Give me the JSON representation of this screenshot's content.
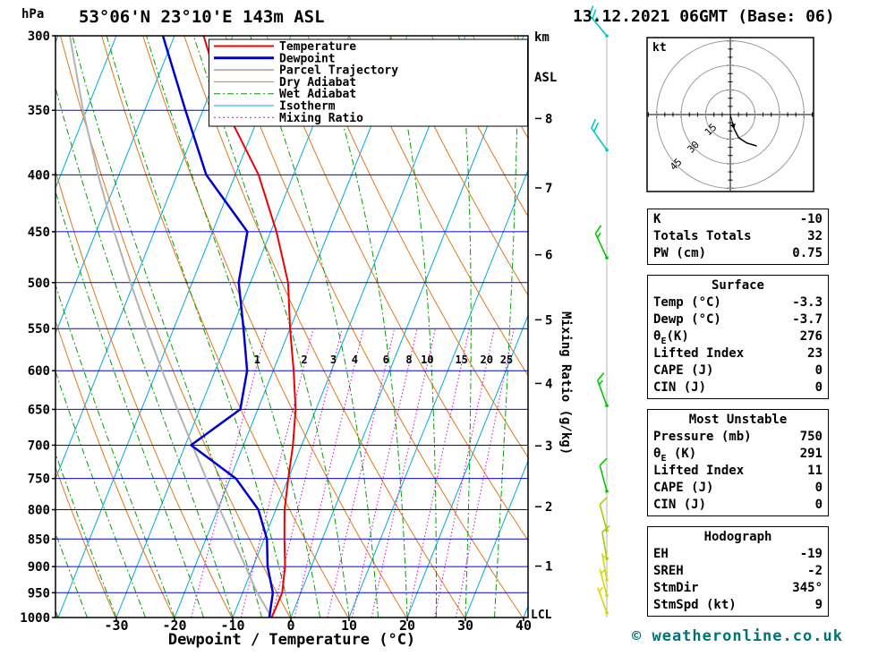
{
  "header": {
    "station_title": "53°06'N 23°10'E 143m ASL",
    "datetime_title": "13.12.2021 06GMT (Base: 06)"
  },
  "axes": {
    "pressure_unit": "hPa",
    "pressure_ticks": [
      300,
      350,
      400,
      450,
      500,
      550,
      600,
      650,
      700,
      750,
      800,
      850,
      900,
      950,
      1000
    ],
    "temp_ticks": [
      -30,
      -20,
      -10,
      0,
      10,
      20,
      30,
      40
    ],
    "xlabel": "Dewpoint / Temperature (°C)",
    "km_unit_line1": "km",
    "km_unit_line2": "ASL",
    "km_ticks": [
      1,
      2,
      3,
      4,
      5,
      6,
      7,
      8
    ],
    "mixing_ratio_label": "Mixing Ratio (g/kg)",
    "lcl_label": "LCL"
  },
  "legend": [
    {
      "label": "Temperature",
      "color": "#ee0000",
      "style": "solid",
      "width": 2
    },
    {
      "label": "Dewpoint",
      "color": "#0000cc",
      "style": "solid",
      "width": 3
    },
    {
      "label": "Parcel Trajectory",
      "color": "#b3b3b3",
      "style": "solid",
      "width": 2
    },
    {
      "label": "Dry Adiabat",
      "color": "#e07818",
      "style": "solid",
      "width": 1
    },
    {
      "label": "Wet Adiabat",
      "color": "#00a000",
      "style": "dashdot",
      "width": 1
    },
    {
      "label": "Isotherm",
      "color": "#00aadd",
      "style": "solid",
      "width": 1
    },
    {
      "label": "Mixing Ratio",
      "color": "#dd00dd",
      "style": "dotted",
      "width": 1
    }
  ],
  "colors": {
    "temperature": "#ee0000",
    "dewpoint": "#0000cc",
    "parcel": "#b3b3b3",
    "dry_adiabat": "#e07818",
    "wet_adiabat": "#00a000",
    "isotherm": "#00aadd",
    "mixing_ratio": "#dd00dd",
    "isobar": "#0000ee",
    "barb_staff": "#b4b4b4"
  },
  "chart_data": {
    "type": "skewt-log-p-sounding",
    "title": "53°06'N 23°10'E 143m ASL  13.12.2021 06GMT (Base: 06)",
    "pressure_axis_hpa": {
      "min": 300,
      "max": 1000,
      "scale": "log"
    },
    "temp_axis_c": {
      "min_at_surface": -40,
      "max_at_surface": 40,
      "skew": "temperature lines slant up-right"
    },
    "isotherm_step_c": 10,
    "dry_adiabat_step_k": 10,
    "wet_adiabat_surface_temps_c": [
      -40,
      -35,
      -30,
      -25,
      -20,
      -15,
      -10,
      -5,
      0,
      5,
      10,
      15,
      20,
      25,
      30,
      35
    ],
    "mixing_ratio_lines_gkg": [
      1,
      2,
      3,
      4,
      6,
      8,
      10,
      15,
      20,
      25
    ],
    "temperature_c": [
      [
        1000,
        -3.3
      ],
      [
        950,
        -3.2
      ],
      [
        900,
        -4.5
      ],
      [
        850,
        -6.5
      ],
      [
        800,
        -8.5
      ],
      [
        750,
        -10.0
      ],
      [
        700,
        -11.5
      ],
      [
        650,
        -13.5
      ],
      [
        600,
        -16.5
      ],
      [
        550,
        -20.0
      ],
      [
        500,
        -23.5
      ],
      [
        450,
        -29.0
      ],
      [
        400,
        -36.0
      ],
      [
        350,
        -46.0
      ],
      [
        300,
        -55.0
      ]
    ],
    "dewpoint_c": [
      [
        1000,
        -3.7
      ],
      [
        950,
        -4.8
      ],
      [
        900,
        -7.5
      ],
      [
        850,
        -9.5
      ],
      [
        800,
        -13.0
      ],
      [
        750,
        -19.0
      ],
      [
        700,
        -29.0
      ],
      [
        650,
        -23.0
      ],
      [
        600,
        -24.5
      ],
      [
        550,
        -28.0
      ],
      [
        500,
        -32.0
      ],
      [
        450,
        -34.0
      ],
      [
        400,
        -45.0
      ],
      [
        350,
        -53.0
      ],
      [
        300,
        -62.0
      ]
    ],
    "parcel_c": [
      [
        1000,
        -3.3
      ],
      [
        950,
        -7.5
      ],
      [
        900,
        -11.3
      ],
      [
        850,
        -15.3
      ],
      [
        800,
        -19.6
      ],
      [
        750,
        -24.1
      ],
      [
        700,
        -28.8
      ],
      [
        650,
        -33.8
      ],
      [
        600,
        -39.1
      ],
      [
        550,
        -44.7
      ],
      [
        500,
        -50.6
      ],
      [
        450,
        -56.9
      ],
      [
        400,
        -63.6
      ],
      [
        350,
        -70.6
      ],
      [
        300,
        -78.0
      ]
    ],
    "lcl_pressure_hpa": 1000,
    "winds": [
      {
        "p_hpa": 300,
        "dir_deg": 320,
        "speed_kt": 25,
        "color": "#00c8c8"
      },
      {
        "p_hpa": 380,
        "dir_deg": 325,
        "speed_kt": 20,
        "color": "#00c8c8"
      },
      {
        "p_hpa": 475,
        "dir_deg": 335,
        "speed_kt": 15,
        "color": "#00c800"
      },
      {
        "p_hpa": 645,
        "dir_deg": 340,
        "speed_kt": 15,
        "color": "#00c800"
      },
      {
        "p_hpa": 770,
        "dir_deg": 345,
        "speed_kt": 10,
        "color": "#00c800"
      },
      {
        "p_hpa": 835,
        "dir_deg": 345,
        "speed_kt": 10,
        "color": "#a0d000"
      },
      {
        "p_hpa": 885,
        "dir_deg": 350,
        "speed_kt": 10,
        "color": "#a0d000"
      },
      {
        "p_hpa": 925,
        "dir_deg": 350,
        "speed_kt": 5,
        "color": "#d8d800"
      },
      {
        "p_hpa": 955,
        "dir_deg": 345,
        "speed_kt": 5,
        "color": "#d8d800"
      },
      {
        "p_hpa": 990,
        "dir_deg": 340,
        "speed_kt": 5,
        "color": "#d8d800"
      }
    ],
    "hodograph": {
      "unit_label": "kt",
      "rings_kt": [
        15,
        30,
        45
      ],
      "trace_uv_kt": [
        [
          1.3,
          -4.8
        ],
        [
          2.3,
          -8.7
        ],
        [
          5.1,
          -14.1
        ],
        [
          10.0,
          -17.3
        ],
        [
          16.1,
          -19.2
        ]
      ],
      "storm_uv_kt": [
        2.3,
        -8.7
      ]
    }
  },
  "tables": [
    {
      "rows": [
        [
          "K",
          "-10"
        ],
        [
          "Totals Totals",
          "32"
        ],
        [
          "PW (cm)",
          "0.75"
        ]
      ]
    },
    {
      "title": "Surface",
      "rows": [
        [
          "Temp (°C)",
          "-3.3"
        ],
        [
          "Dewp (°C)",
          "-3.7"
        ],
        [
          "θE(K)",
          "276"
        ],
        [
          "Lifted Index",
          "23"
        ],
        [
          "CAPE (J)",
          "0"
        ],
        [
          "CIN (J)",
          "0"
        ]
      ]
    },
    {
      "title": "Most Unstable",
      "rows": [
        [
          "Pressure (mb)",
          "750"
        ],
        [
          "θE (K)",
          "291"
        ],
        [
          "Lifted Index",
          "11"
        ],
        [
          "CAPE (J)",
          "0"
        ],
        [
          "CIN (J)",
          "0"
        ]
      ]
    },
    {
      "title": "Hodograph",
      "rows": [
        [
          "EH",
          "-19"
        ],
        [
          "SREH",
          "-2"
        ],
        [
          "StmDir",
          "345°"
        ],
        [
          "StmSpd (kt)",
          "9"
        ]
      ]
    }
  ],
  "footer": {
    "copyright": "© weatheronline.co.uk"
  }
}
